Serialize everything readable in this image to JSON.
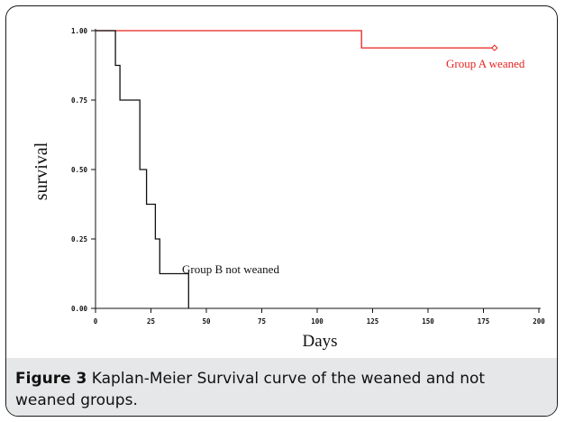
{
  "chart_data": {
    "type": "line",
    "step": true,
    "xlabel": "Days",
    "ylabel": "survival",
    "xlim": [
      0,
      200
    ],
    "ylim": [
      0,
      1
    ],
    "x_ticks": [
      0,
      25,
      50,
      75,
      100,
      125,
      150,
      175,
      200
    ],
    "x_tick_labels": [
      "0",
      "25",
      "50",
      "75",
      "100",
      "125",
      "150",
      "175",
      "200"
    ],
    "y_ticks": [
      0,
      0.25,
      0.5,
      0.75,
      1
    ],
    "y_tick_labels": [
      "0.00",
      "0.25",
      "0.50",
      "0.75",
      "1.00"
    ],
    "grid": false,
    "series": [
      {
        "name": "Group A weaned",
        "color": "#e8231f",
        "points": [
          [
            0,
            1.0
          ],
          [
            120,
            1.0
          ],
          [
            120,
            0.938
          ],
          [
            180,
            0.938
          ]
        ],
        "censor_marker": [
          180,
          0.938
        ]
      },
      {
        "name": "Group B not weaned",
        "color": "#111111",
        "points": [
          [
            0,
            1.0
          ],
          [
            9,
            1.0
          ],
          [
            9,
            0.875
          ],
          [
            11,
            0.875
          ],
          [
            11,
            0.75
          ],
          [
            20,
            0.75
          ],
          [
            20,
            0.5
          ],
          [
            23,
            0.5
          ],
          [
            23,
            0.375
          ],
          [
            27,
            0.375
          ],
          [
            27,
            0.25
          ],
          [
            29,
            0.25
          ],
          [
            29,
            0.125
          ],
          [
            42,
            0.125
          ],
          [
            42,
            0.0
          ]
        ]
      }
    ]
  },
  "caption": {
    "label": "Figure 3",
    "text": " Kaplan-Meier Survival curve of the weaned and not weaned groups."
  }
}
